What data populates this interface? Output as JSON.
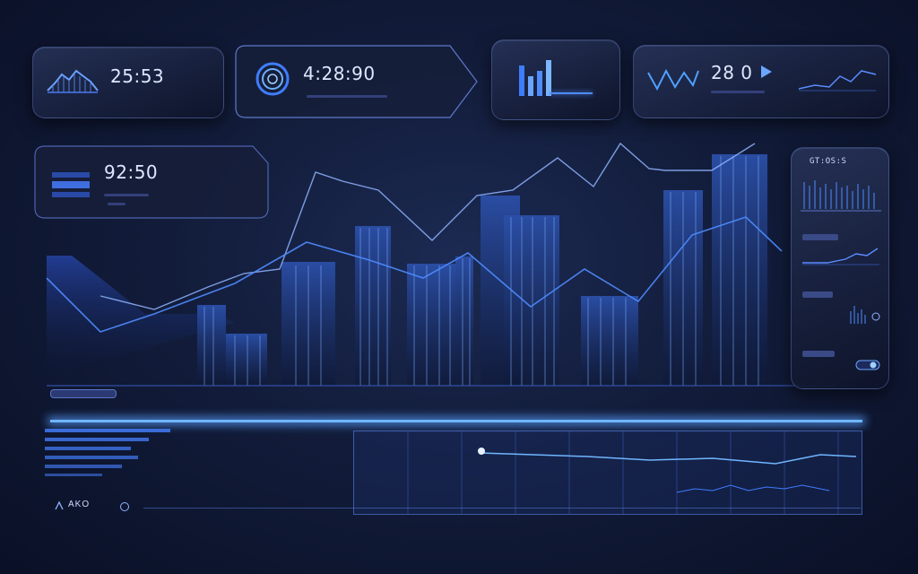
{
  "kpis": {
    "card1_value": "25:53",
    "card2_value": "4:28:90",
    "card4_value": "28 0",
    "card4_sub": "",
    "card5_value": "92:50"
  },
  "side_panel": {
    "title": "GT:OS:S",
    "row1_label": "",
    "row2_label": "",
    "row3_label": ""
  },
  "bottom": {
    "footer_label": "AKO"
  },
  "colors": {
    "accent": "#4f8cff",
    "glow": "#6fb6ff",
    "background": "#121c3a",
    "card_border": "#5b74c8"
  }
}
